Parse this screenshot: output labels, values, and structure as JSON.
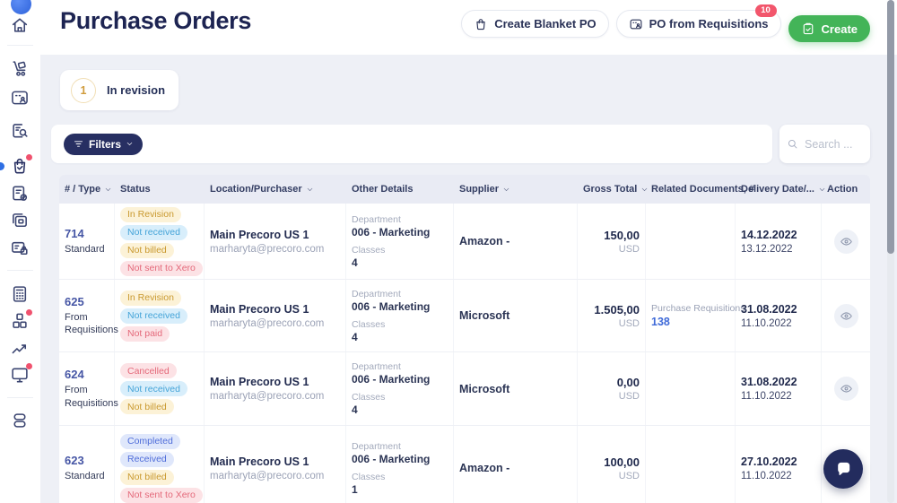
{
  "page": {
    "title": "Purchase Orders"
  },
  "header": {
    "buttons": [
      {
        "label": "Create Blanket PO",
        "icon": "bag-icon"
      },
      {
        "label": "PO from Requisitions",
        "icon": "id-card-icon",
        "badge": "10"
      },
      {
        "label": "Create",
        "icon": "clipboard-check-icon"
      }
    ]
  },
  "summary": {
    "count": "1",
    "label": "In revision"
  },
  "toolbar": {
    "filters_label": "Filters",
    "search_placeholder": "Search ..."
  },
  "table": {
    "columns": [
      {
        "label": "# / Type",
        "sortable": true
      },
      {
        "label": "Status",
        "sortable": false
      },
      {
        "label": "Location/Purchaser",
        "sortable": true
      },
      {
        "label": "Other Details",
        "sortable": false
      },
      {
        "label": "Supplier",
        "sortable": true
      },
      {
        "label": "Gross Total",
        "sortable": true
      },
      {
        "label": "Related Documents, #",
        "sortable": false
      },
      {
        "label": "Delivery Date/...",
        "sortable": true
      },
      {
        "label": "Action",
        "sortable": false
      }
    ],
    "rows": [
      {
        "number": "714",
        "type": "Standard",
        "statuses": [
          {
            "label": "In Revision",
            "kind": "warning"
          },
          {
            "label": "Not received",
            "kind": "info"
          },
          {
            "label": "Not billed",
            "kind": "warning"
          },
          {
            "label": "Not sent to Xero",
            "kind": "danger"
          }
        ],
        "location": "Main Precoro US 1",
        "purchaser": "marharyta@precoro.com",
        "details": [
          {
            "label": "Department",
            "value": "006 - Marketing"
          },
          {
            "label": "Classes",
            "value": "4"
          }
        ],
        "supplier": "Amazon -",
        "gross_total": "150,00",
        "currency": "USD",
        "related": null,
        "delivery_date": "14.12.2022",
        "secondary_date": "13.12.2022"
      },
      {
        "number": "625",
        "type": "From Requisitions",
        "statuses": [
          {
            "label": "In Revision",
            "kind": "warning"
          },
          {
            "label": "Not received",
            "kind": "info"
          },
          {
            "label": "Not paid",
            "kind": "danger"
          }
        ],
        "location": "Main Precoro US 1",
        "purchaser": "marharyta@precoro.com",
        "details": [
          {
            "label": "Department",
            "value": "006 - Marketing"
          },
          {
            "label": "Classes",
            "value": "4"
          }
        ],
        "supplier": "Microsoft",
        "gross_total": "1.505,00",
        "currency": "USD",
        "related": {
          "label": "Purchase Requisitions",
          "number": "138"
        },
        "delivery_date": "31.08.2022",
        "secondary_date": "11.10.2022"
      },
      {
        "number": "624",
        "type": "From Requisitions",
        "statuses": [
          {
            "label": "Cancelled",
            "kind": "danger"
          },
          {
            "label": "Not received",
            "kind": "info"
          },
          {
            "label": "Not billed",
            "kind": "warning"
          }
        ],
        "location": "Main Precoro US 1",
        "purchaser": "marharyta@precoro.com",
        "details": [
          {
            "label": "Department",
            "value": "006 - Marketing"
          },
          {
            "label": "Classes",
            "value": "4"
          }
        ],
        "supplier": "Microsoft",
        "gross_total": "0,00",
        "currency": "USD",
        "related": null,
        "delivery_date": "31.08.2022",
        "secondary_date": "11.10.2022"
      },
      {
        "number": "623",
        "type": "Standard",
        "statuses": [
          {
            "label": "Completed",
            "kind": "primary"
          },
          {
            "label": "Received",
            "kind": "primary"
          },
          {
            "label": "Not billed",
            "kind": "warning"
          },
          {
            "label": "Not sent to Xero",
            "kind": "danger"
          }
        ],
        "location": "Main Precoro US 1",
        "purchaser": "marharyta@precoro.com",
        "details": [
          {
            "label": "Department",
            "value": "006 - Marketing"
          },
          {
            "label": "Classes",
            "value": "1"
          }
        ],
        "supplier": "Amazon -",
        "gross_total": "100,00",
        "currency": "USD",
        "related": null,
        "delivery_date": "27.10.2022",
        "secondary_date": "11.10.2022"
      }
    ]
  },
  "sidebar": {
    "items": [
      {
        "icon": "home",
        "active": false,
        "notification_dot": false
      },
      {
        "icon": "hand-truck",
        "active": false,
        "notification_dot": false
      },
      {
        "icon": "id-card",
        "active": false,
        "notification_dot": false
      },
      {
        "icon": "document-search",
        "active": false,
        "notification_dot": false
      },
      {
        "icon": "shopping-bag-check",
        "active": true,
        "notification_dot": true
      },
      {
        "icon": "document-check",
        "active": false,
        "notification_dot": false
      },
      {
        "icon": "copy-cards",
        "active": false,
        "notification_dot": false
      },
      {
        "icon": "card-lock",
        "active": false,
        "notification_dot": false
      },
      {
        "icon": "calculator",
        "active": false,
        "notification_dot": false
      },
      {
        "icon": "cubes",
        "active": false,
        "notification_dot": true
      },
      {
        "icon": "line-chart",
        "active": false,
        "notification_dot": false
      },
      {
        "icon": "monitor",
        "active": false,
        "notification_dot": true
      },
      {
        "icon": "stack",
        "active": false,
        "notification_dot": false
      }
    ]
  },
  "colors": {
    "brand_navy": "#272f62",
    "title_navy": "#1d2452",
    "accent_green": "#43b458",
    "badge_red": "#f2566c",
    "link_blue": "#3f6ad8",
    "status_warning_bg": "#fcf2d7",
    "status_warning_text": "#c9992f",
    "status_info_bg": "#d8eefb",
    "status_info_text": "#45a4d8",
    "status_danger_bg": "#fce2e5",
    "status_danger_text": "#e4697a",
    "status_primary_bg": "#dfe7fb",
    "status_primary_text": "#4e6cd9"
  }
}
